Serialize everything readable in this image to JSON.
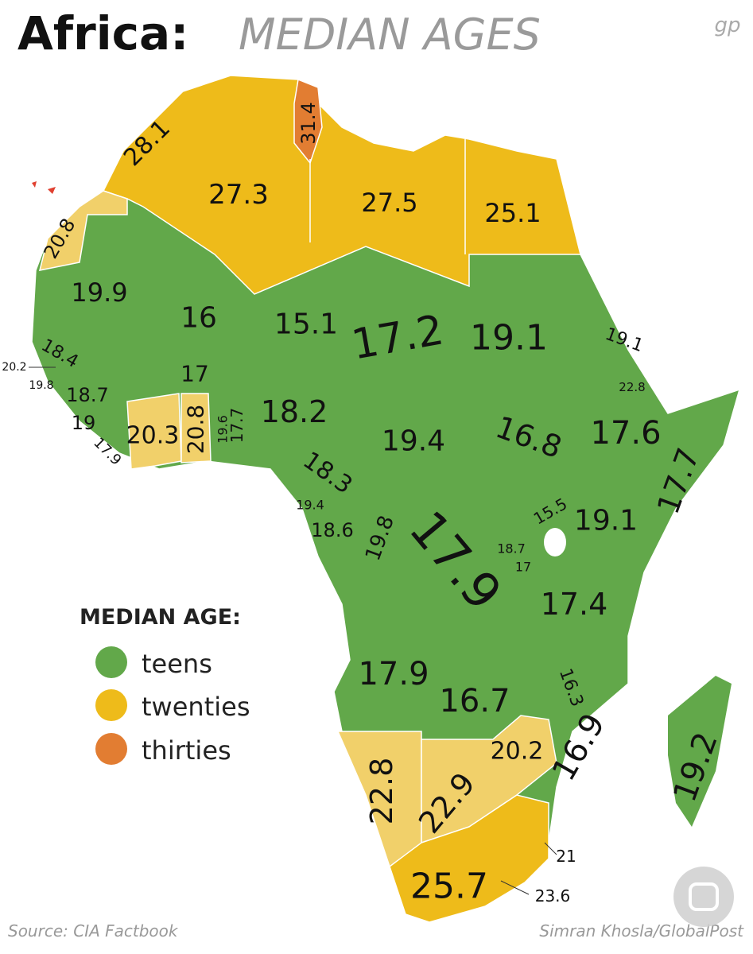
{
  "title": {
    "main": "Africa:",
    "sub": "MEDIAN AGES"
  },
  "logo": "gp",
  "legend": {
    "title": "MEDIAN AGE:",
    "items": [
      "teens",
      "twenties",
      "thirties"
    ]
  },
  "labels": [
    "28.1",
    "31.4",
    "27.3",
    "27.5",
    "25.1",
    "20.8",
    "19.9",
    "16",
    "15.1",
    "17.2",
    "19.1",
    "19.1",
    "18.4",
    "20.2",
    "19.8",
    "18.7",
    "17",
    "22.8",
    "19",
    "20.3",
    "20.8",
    "19.6",
    "17.7",
    "18.2",
    "17.6",
    "16.8",
    "19.4",
    "17.9",
    "18.3",
    "17.7",
    "19.4",
    "15.5",
    "19.1",
    "18.6",
    "19.8",
    "17.9",
    "18.7",
    "17",
    "17.4",
    "17.9",
    "16.3",
    "16.7",
    "20.2",
    "16.9",
    "19.2",
    "22.8",
    "22.9",
    "21",
    "25.7",
    "23.6"
  ],
  "source": "Source: CIA Factbook",
  "credit": "Simran Khosla/GlobalPost"
}
